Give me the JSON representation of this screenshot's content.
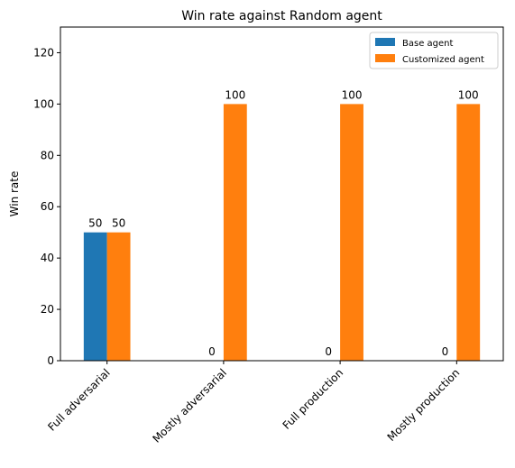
{
  "chart_data": {
    "type": "bar",
    "title": "Win rate against Random agent",
    "xlabel": "",
    "ylabel": "Win rate",
    "categories": [
      "Full adversarial",
      "Mostly adversarial",
      "Full production",
      "Mostly production"
    ],
    "series": [
      {
        "name": "Base agent",
        "values": [
          50,
          0,
          0,
          0
        ],
        "color": "#1f77b4"
      },
      {
        "name": "Customized agent",
        "values": [
          50,
          100,
          100,
          100
        ],
        "color": "#ff7f0e"
      }
    ],
    "ylim": [
      0,
      130
    ],
    "yticks": [
      0,
      20,
      40,
      60,
      80,
      100,
      120
    ],
    "grid": false,
    "legend_position": "top-right",
    "data_labels": true
  }
}
